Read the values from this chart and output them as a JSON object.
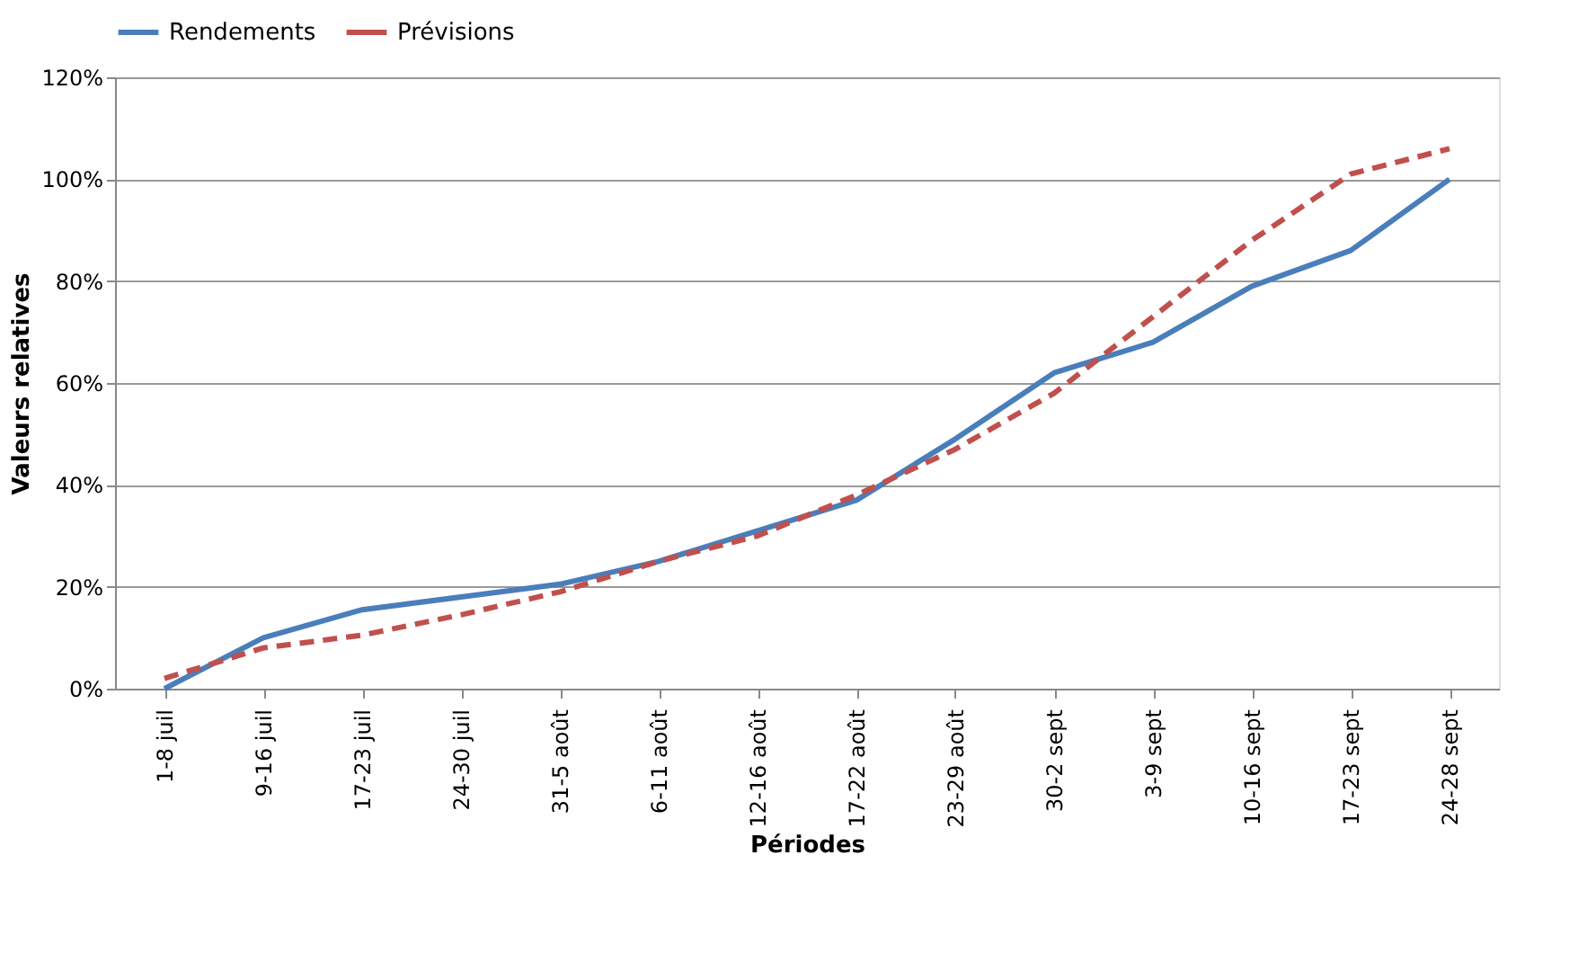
{
  "chart_data": {
    "type": "line",
    "xlabel": "Périodes",
    "ylabel": "Valeurs relatives",
    "categories": [
      "1-8 juil",
      "9-16 juil",
      "17-23 juil",
      "24-30 juil",
      "31-5 août",
      "6-11 août",
      "12-16 août",
      "17-22 août",
      "23-29 août",
      "30-2 sept",
      "3-9 sept",
      "10-16 sept",
      "17-23 sept",
      "24-28 sept"
    ],
    "series": [
      {
        "name": "Rendements",
        "color": "#4a7ebb",
        "line_style": "solid",
        "values": [
          0,
          10,
          15.5,
          18,
          20.5,
          25,
          31,
          37,
          49,
          62,
          68,
          79,
          86,
          100
        ]
      },
      {
        "name": "Prévisions",
        "color": "#c0504d",
        "line_style": "dashed",
        "values": [
          2,
          8,
          10.5,
          14.5,
          19,
          25,
          30,
          38,
          47,
          58,
          73,
          88,
          101,
          106
        ]
      }
    ],
    "ylim": [
      0,
      120
    ],
    "yticks": [
      {
        "value": 0,
        "label": "0%"
      },
      {
        "value": 20,
        "label": "20%"
      },
      {
        "value": 40,
        "label": "40%"
      },
      {
        "value": 60,
        "label": "60%"
      },
      {
        "value": 80,
        "label": "80%"
      },
      {
        "value": 100,
        "label": "100%"
      },
      {
        "value": 120,
        "label": "120%"
      }
    ],
    "grid": "y",
    "legend": "top",
    "marker": "none"
  }
}
